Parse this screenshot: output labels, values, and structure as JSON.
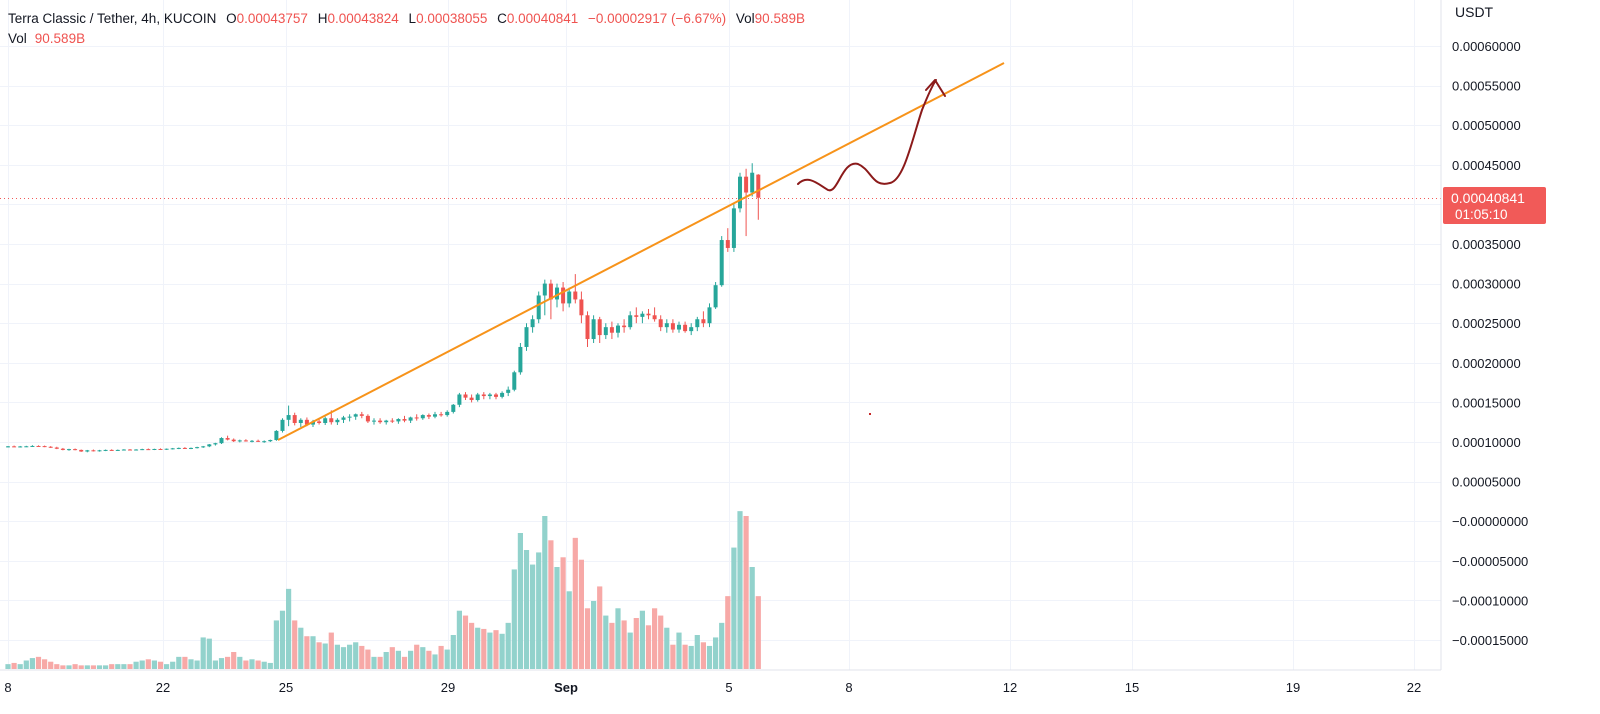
{
  "header": {
    "symbol": "Terra Classic / Tether, 4h, KUCOIN",
    "open_label": "O",
    "open": "0.00043757",
    "high_label": "H",
    "high": "0.00043824",
    "low_label": "L",
    "low": "0.00038055",
    "close_label": "C",
    "close": "0.00040841",
    "change": "−0.00002917 (−6.67%)",
    "vol_label": "Vol",
    "vol": "90.589B"
  },
  "volume_row": {
    "label": "Vol",
    "value": "90.589B"
  },
  "price_axis": {
    "unit": "USDT",
    "ticks": [
      "0.00060000",
      "0.00055000",
      "0.00050000",
      "0.00045000",
      "0.00035000",
      "0.00030000",
      "0.00025000",
      "0.00020000",
      "0.00015000",
      "0.00010000",
      "0.00005000",
      "−0.00000000",
      "−0.00005000",
      "−0.00010000",
      "−0.00015000"
    ]
  },
  "last_price": {
    "price": "0.00040841",
    "countdown": "01:05:10"
  },
  "time_axis": {
    "ticks": [
      "8",
      "22",
      "25",
      "29",
      "Sep",
      "5",
      "8",
      "12",
      "15",
      "19",
      "22"
    ]
  },
  "colors": {
    "up": "#26a69a",
    "down": "#ef5350",
    "up_volume": "#92d2cc",
    "down_volume": "#f7a9a7",
    "trendline": "#f7931a",
    "drawing": "#8b1a1a",
    "grid": "#f0f3fa"
  },
  "chart_data": {
    "type": "candlestick",
    "interval": "4h",
    "y_range": [
      -0.00017,
      0.00062
    ],
    "ohlc": [
      [
        9.4e-05,
        9.5e-05,
        9.3e-05,
        9.45e-05
      ],
      [
        9.45e-05,
        9.55e-05,
        9.35e-05,
        9.42e-05
      ],
      [
        9.42e-05,
        9.5e-05,
        9.3e-05,
        9.44e-05
      ],
      [
        9.44e-05,
        9.52e-05,
        9.36e-05,
        9.46e-05
      ],
      [
        9.46e-05,
        9.6e-05,
        9.38e-05,
        9.5e-05
      ],
      [
        9.5e-05,
        9.58e-05,
        9.42e-05,
        9.48e-05
      ],
      [
        9.48e-05,
        9.55e-05,
        9.35e-05,
        9.4e-05
      ],
      [
        9.4e-05,
        9.48e-05,
        9.25e-05,
        9.3e-05
      ],
      [
        9.3e-05,
        9.4e-05,
        9.1e-05,
        9.15e-05
      ],
      [
        9.15e-05,
        9.25e-05,
        8.95e-05,
        9e-05
      ],
      [
        9e-05,
        9.15e-05,
        8.9e-05,
        9.1e-05
      ],
      [
        9.1e-05,
        9.18e-05,
        8.95e-05,
        9e-05
      ],
      [
        9e-05,
        9.05e-05,
        8.75e-05,
        8.8e-05
      ],
      [
        8.8e-05,
        9e-05,
        8.7e-05,
        8.95e-05
      ],
      [
        8.95e-05,
        9.05e-05,
        8.8e-05,
        8.85e-05
      ],
      [
        8.85e-05,
        9e-05,
        8.78e-05,
        8.95e-05
      ],
      [
        8.95e-05,
        9.05e-05,
        8.85e-05,
        9e-05
      ],
      [
        9e-05,
        9.08e-05,
        8.9e-05,
        8.95e-05
      ],
      [
        8.95e-05,
        9.05e-05,
        8.88e-05,
        9e-05
      ],
      [
        9e-05,
        9.1e-05,
        8.92e-05,
        9.05e-05
      ],
      [
        9.05e-05,
        9.12e-05,
        8.95e-05,
        9e-05
      ],
      [
        9e-05,
        9.1e-05,
        8.92e-05,
        9.05e-05
      ],
      [
        9.05e-05,
        9.15e-05,
        8.98e-05,
        9.1e-05
      ],
      [
        9.1e-05,
        9.18e-05,
        9e-05,
        9.05e-05
      ],
      [
        9.05e-05,
        9.15e-05,
        8.98e-05,
        9.12e-05
      ],
      [
        9.12e-05,
        9.2e-05,
        9.02e-05,
        9.08e-05
      ],
      [
        9.08e-05,
        9.18e-05,
        9e-05,
        9.15e-05
      ],
      [
        9.15e-05,
        9.25e-05,
        9.05e-05,
        9.2e-05
      ],
      [
        9.2e-05,
        9.3e-05,
        9.1e-05,
        9.25e-05
      ],
      [
        9.25e-05,
        9.35e-05,
        9.12e-05,
        9.18e-05
      ],
      [
        9.18e-05,
        9.3e-05,
        9.1e-05,
        9.25e-05
      ],
      [
        9.25e-05,
        9.4e-05,
        9.18e-05,
        9.35e-05
      ],
      [
        9.35e-05,
        9.5e-05,
        9.25e-05,
        9.45e-05
      ],
      [
        9.45e-05,
        9.75e-05,
        9.35e-05,
        9.7e-05
      ],
      [
        9.7e-05,
        9.9e-05,
        9.55e-05,
        9.85e-05
      ],
      [
        9.85e-05,
        0.000106,
        9.75e-05,
        0.000105
      ],
      [
        0.000105,
        0.000108,
        0.000102,
        0.000103
      ],
      [
        0.000103,
        0.0001045,
        0.0001,
        0.000101
      ],
      [
        0.000101,
        0.000103,
        9.95e-05,
        0.000102
      ],
      [
        0.000102,
        0.0001035,
        0.0001005,
        0.000101
      ],
      [
        0.000101,
        0.0001025,
        9.95e-05,
        0.0001015
      ],
      [
        0.0001015,
        0.000103,
        0.0001,
        0.0001005
      ],
      [
        0.0001005,
        0.000102,
        9.9e-05,
        0.000101
      ],
      [
        0.000101,
        0.000103,
        0.0001,
        0.0001025
      ],
      [
        0.0001025,
        0.000115,
        0.0001015,
        0.000114
      ],
      [
        0.000114,
        0.00013,
        0.000112,
        0.000128
      ],
      [
        0.000128,
        0.000146,
        0.00012,
        0.000134
      ],
      [
        0.000134,
        0.000137,
        0.000121,
        0.000124
      ],
      [
        0.000124,
        0.00013,
        0.000119,
        0.000128
      ],
      [
        0.000128,
        0.000131,
        0.00012,
        0.000122
      ],
      [
        0.000122,
        0.000128,
        0.000119,
        0.000126
      ],
      [
        0.000126,
        0.00013,
        0.000122,
        0.000124
      ],
      [
        0.000124,
        0.000132,
        0.0001215,
        0.00013
      ],
      [
        0.00013,
        0.00014,
        0.000122,
        0.000125
      ],
      [
        0.000125,
        0.00013,
        0.0001215,
        0.000128
      ],
      [
        0.000128,
        0.000133,
        0.000124,
        0.000131
      ],
      [
        0.000131,
        0.000135,
        0.000126,
        0.000132
      ],
      [
        0.000132,
        0.000136,
        0.000128,
        0.000135
      ],
      [
        0.000135,
        0.000138,
        0.00013,
        0.000133
      ],
      [
        0.000133,
        0.000135,
        0.000124,
        0.000126
      ],
      [
        0.000126,
        0.00013,
        0.000122,
        0.000127
      ],
      [
        0.000127,
        0.00013,
        0.000123,
        0.000125
      ],
      [
        0.000125,
        0.000128,
        0.000122,
        0.000127
      ],
      [
        0.000127,
        0.00013,
        0.000124,
        0.000126
      ],
      [
        0.000126,
        0.00013,
        0.000123,
        0.000129
      ],
      [
        0.000129,
        0.000133,
        0.000125,
        0.000127
      ],
      [
        0.000127,
        0.000132,
        0.000124,
        0.000131
      ],
      [
        0.000131,
        0.000135,
        0.000127,
        0.00013
      ],
      [
        0.00013,
        0.000135,
        0.000128,
        0.000134
      ],
      [
        0.000134,
        0.000136,
        0.000129,
        0.000132
      ],
      [
        0.000132,
        0.000138,
        0.00013,
        0.000135
      ],
      [
        0.000135,
        0.000138,
        0.000132,
        0.000134
      ],
      [
        0.000134,
        0.00014,
        0.000132,
        0.000138
      ],
      [
        0.000138,
        0.000148,
        0.000136,
        0.000147
      ],
      [
        0.000147,
        0.000162,
        0.000144,
        0.00016
      ],
      [
        0.00016,
        0.000163,
        0.000153,
        0.000156
      ],
      [
        0.000156,
        0.00016,
        0.00015,
        0.000153
      ],
      [
        0.000153,
        0.000162,
        0.000151,
        0.00016
      ],
      [
        0.00016,
        0.000163,
        0.000154,
        0.000158
      ],
      [
        0.000158,
        0.000162,
        0.000154,
        0.00016
      ],
      [
        0.00016,
        0.000162,
        0.000154,
        0.000157
      ],
      [
        0.000157,
        0.000164,
        0.000155,
        0.000162
      ],
      [
        0.000162,
        0.00017,
        0.000158,
        0.000166
      ],
      [
        0.000166,
        0.00019,
        0.000164,
        0.000188
      ],
      [
        0.000188,
        0.000225,
        0.000185,
        0.00022
      ],
      [
        0.00022,
        0.00025,
        0.000215,
        0.000245
      ],
      [
        0.000245,
        0.00026,
        0.000238,
        0.000255
      ],
      [
        0.000255,
        0.00029,
        0.00025,
        0.000285
      ],
      [
        0.000285,
        0.000305,
        0.00026,
        0.0003
      ],
      [
        0.0003,
        0.000305,
        0.000255,
        0.00028
      ],
      [
        0.00028,
        0.0003,
        0.00027,
        0.000295
      ],
      [
        0.000295,
        0.000302,
        0.000265,
        0.000275
      ],
      [
        0.000275,
        0.000295,
        0.00027,
        0.00029
      ],
      [
        0.00029,
        0.000312,
        0.000275,
        0.00028
      ],
      [
        0.00028,
        0.00029,
        0.00025,
        0.00026
      ],
      [
        0.00026,
        0.000265,
        0.00022,
        0.00023
      ],
      [
        0.00023,
        0.00026,
        0.000225,
        0.000255
      ],
      [
        0.000255,
        0.000258,
        0.000225,
        0.000235
      ],
      [
        0.000235,
        0.00025,
        0.00023,
        0.000245
      ],
      [
        0.000245,
        0.000252,
        0.00023,
        0.000238
      ],
      [
        0.000238,
        0.00025,
        0.000232,
        0.000247
      ],
      [
        0.000247,
        0.000255,
        0.000238,
        0.000245
      ],
      [
        0.000245,
        0.000265,
        0.000242,
        0.00026
      ],
      [
        0.00026,
        0.00027,
        0.00025,
        0.000258
      ],
      [
        0.000258,
        0.000265,
        0.00025,
        0.000262
      ],
      [
        0.000262,
        0.000268,
        0.000255,
        0.00026
      ],
      [
        0.00026,
        0.00027,
        0.000252,
        0.000255
      ],
      [
        0.000255,
        0.00026,
        0.00024,
        0.000245
      ],
      [
        0.000245,
        0.000255,
        0.000238,
        0.00025
      ],
      [
        0.00025,
        0.000255,
        0.000238,
        0.000242
      ],
      [
        0.000242,
        0.000252,
        0.000238,
        0.000248
      ],
      [
        0.000248,
        0.000252,
        0.000238,
        0.00024
      ],
      [
        0.00024,
        0.00025,
        0.000235,
        0.000245
      ],
      [
        0.000245,
        0.000258,
        0.00024,
        0.000255
      ],
      [
        0.000255,
        0.000265,
        0.000245,
        0.00025
      ],
      [
        0.00025,
        0.000275,
        0.000245,
        0.00027
      ],
      [
        0.00027,
        0.000302,
        0.000268,
        0.000298
      ],
      [
        0.000298,
        0.00036,
        0.000296,
        0.000355
      ],
      [
        0.000355,
        0.00037,
        0.00034,
        0.000345
      ],
      [
        0.000345,
        0.0004,
        0.00034,
        0.000395
      ],
      [
        0.000395,
        0.00044,
        0.00039,
        0.000435
      ],
      [
        0.000435,
        0.000445,
        0.00036,
        0.000415
      ],
      [
        0.000415,
        0.000452,
        0.00041,
        0.00044
      ],
      [
        0.0004376,
        0.0004382,
        0.0003806,
        0.0004084
      ]
    ],
    "volume": [
      2,
      2.5,
      2,
      3.5,
      4.5,
      5,
      4,
      3,
      2,
      1.5,
      1.5,
      2,
      1.5,
      1.5,
      1.5,
      1.5,
      1.5,
      2,
      2,
      2,
      2,
      3,
      3.5,
      4,
      3.5,
      3,
      2,
      3,
      5,
      5,
      4,
      3.5,
      13,
      12.5,
      3.5,
      4.5,
      5,
      7,
      5,
      3.5,
      4,
      3.5,
      3,
      2.5,
      20,
      24,
      33,
      20,
      17,
      13.5,
      13.5,
      11,
      10.5,
      15,
      10,
      9,
      10,
      11,
      9.5,
      8,
      5,
      5,
      7,
      9,
      7.5,
      5,
      7.5,
      10,
      9,
      7.5,
      6,
      9.5,
      8,
      14,
      24,
      22,
      19,
      17,
      16.5,
      15,
      16,
      14.5,
      19,
      41,
      56,
      49,
      43,
      48,
      63,
      53,
      42,
      46,
      32,
      54,
      45,
      25,
      28,
      34,
      22,
      19,
      25,
      20,
      15,
      21,
      24,
      18,
      25,
      22,
      17,
      10,
      15,
      10,
      9.5,
      14,
      11,
      9.5,
      13,
      19,
      30,
      50,
      65,
      63,
      42,
      30
    ],
    "volume_max": 70
  }
}
